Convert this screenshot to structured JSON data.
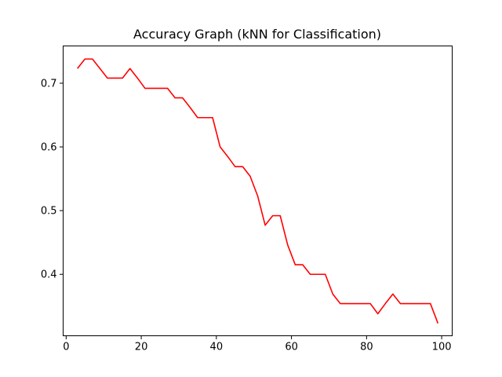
{
  "chart_data": {
    "type": "line",
    "title": "Accuracy Graph (kNN for Classification)",
    "xlabel": "",
    "ylabel": "",
    "xlim": [
      -0.8,
      102.8
    ],
    "ylim": [
      0.3035,
      0.7585
    ],
    "x_ticks": [
      0,
      20,
      40,
      60,
      80,
      100
    ],
    "x_tick_labels": [
      "0",
      "20",
      "40",
      "60",
      "80",
      "100"
    ],
    "y_ticks": [
      0.4,
      0.5,
      0.6,
      0.7
    ],
    "y_tick_labels": [
      "0.4",
      "0.5",
      "0.6",
      "0.7"
    ],
    "grid": false,
    "legend": "none",
    "series": [
      {
        "color": "#ff0000",
        "x": [
          3,
          5,
          7,
          9,
          11,
          13,
          15,
          17,
          19,
          21,
          23,
          25,
          27,
          29,
          31,
          33,
          35,
          37,
          39,
          41,
          43,
          45,
          47,
          49,
          51,
          53,
          55,
          57,
          59,
          61,
          63,
          65,
          67,
          69,
          71,
          73,
          75,
          77,
          79,
          81,
          83,
          85,
          87,
          89,
          91,
          93,
          95,
          97,
          99
        ],
        "y": [
          0.723,
          0.738,
          0.738,
          0.723,
          0.708,
          0.708,
          0.708,
          0.723,
          0.708,
          0.692,
          0.692,
          0.692,
          0.692,
          0.677,
          0.677,
          0.662,
          0.646,
          0.646,
          0.646,
          0.6,
          0.585,
          0.569,
          0.569,
          0.554,
          0.523,
          0.477,
          0.492,
          0.492,
          0.446,
          0.415,
          0.415,
          0.4,
          0.4,
          0.4,
          0.369,
          0.354,
          0.354,
          0.354,
          0.354,
          0.354,
          0.338,
          0.354,
          0.369,
          0.354,
          0.354,
          0.354,
          0.354,
          0.354,
          0.323
        ]
      }
    ]
  }
}
